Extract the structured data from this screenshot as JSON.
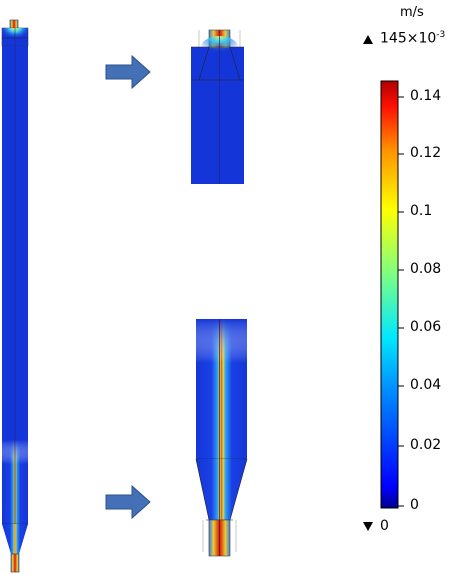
{
  "legend": {
    "unit": "m/s",
    "max_value": "145×10",
    "max_exponent": "-3",
    "min_value": "0",
    "colormap": [
      "#00007f",
      "#0000ff",
      "#007fff",
      "#00ffff",
      "#7fff7f",
      "#ffff00",
      "#ff7f00",
      "#ff0000",
      "#7f0000"
    ],
    "ticks": [
      "0.14",
      "0.12",
      "0.1",
      "0.08",
      "0.06",
      "0.04",
      "0.02",
      "0"
    ]
  },
  "colors": {
    "field_blue": "#1436d8",
    "arrow": "#4470b8"
  }
}
